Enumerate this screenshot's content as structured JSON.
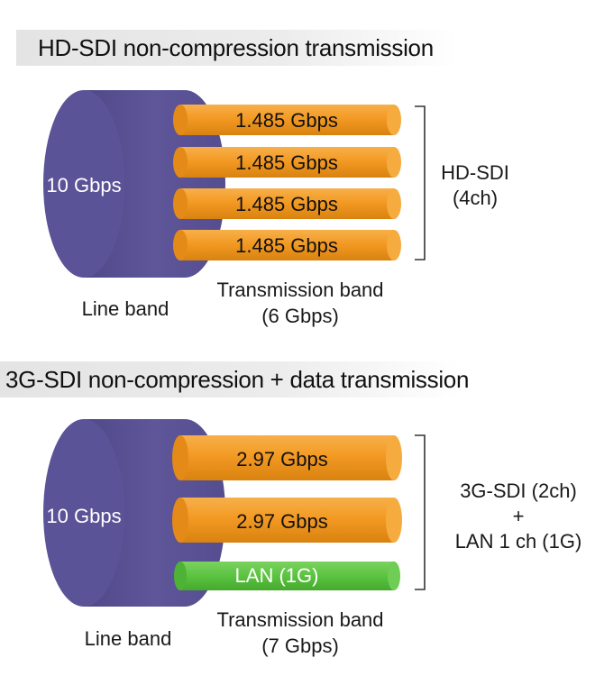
{
  "hd_section": {
    "title": "HD-SDI non-compression transmission",
    "line_speed": "10 Gbps",
    "line_band_label": "Line band",
    "transmission_band_label": "Transmission band",
    "transmission_band_value": "(6 Gbps)",
    "channels": [
      {
        "label": "1.485 Gbps",
        "color": "#f39a24"
      },
      {
        "label": "1.485 Gbps",
        "color": "#f39a24"
      },
      {
        "label": "1.485 Gbps",
        "color": "#f39a24"
      },
      {
        "label": "1.485 Gbps",
        "color": "#f39a24"
      }
    ],
    "bracket_label": {
      "line1": "HD-SDI",
      "line2": "(4ch)"
    }
  },
  "g3_section": {
    "title": "3G-SDI non-compression + data transmission",
    "line_speed": "10 Gbps",
    "line_band_label": "Line band",
    "transmission_band_label": "Transmission band",
    "transmission_band_value": "(7 Gbps)",
    "channels": [
      {
        "label": "2.97 Gbps",
        "color": "#f39a24"
      },
      {
        "label": "2.97 Gbps",
        "color": "#f39a24"
      },
      {
        "label": "LAN (1G)",
        "color": "#5cc341"
      }
    ],
    "bracket_label": {
      "line1": "3G-SDI (2ch)",
      "line2": "+",
      "line3": "LAN 1 ch (1G)"
    }
  },
  "colors": {
    "line_cylinder": "#5e5699",
    "line_cylinder_face": "#6a62a8",
    "sdi_cable": "#f39a24",
    "lan_cable": "#5cc341",
    "title_bar": "#e6e6e6"
  }
}
